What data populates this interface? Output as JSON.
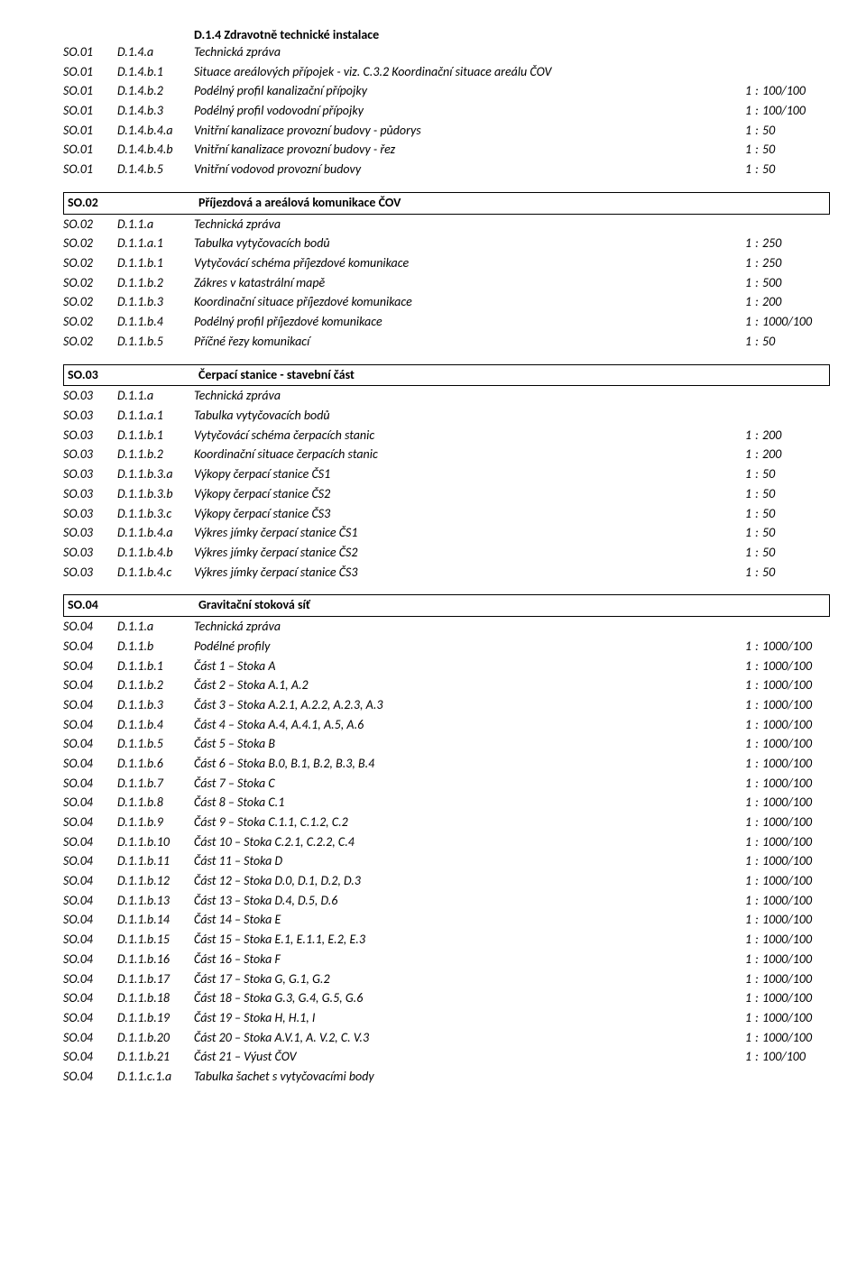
{
  "colors": {
    "text": "#000000",
    "border": "#000000",
    "background": "#ffffff"
  },
  "typography": {
    "family": "Calibri",
    "size_pt": 11,
    "line_height": 1.55
  },
  "topTitle": "D.1.4 Zdravotně technické instalace",
  "group1": [
    {
      "a": "SO.01",
      "b": "D.1.4.a",
      "c": "Technická zpráva"
    },
    {
      "a": "SO.01",
      "b": "D.1.4.b.1",
      "c": "Situace areálových přípojek - viz. C.3.2 Koordinační situace areálu ČOV"
    },
    {
      "a": "SO.01",
      "b": "D.1.4.b.2",
      "c": "Podélný profil kanalizační přípojky",
      "r1": "1",
      "r2": ":",
      "r3": "100/100"
    },
    {
      "a": "SO.01",
      "b": "D.1.4.b.3",
      "c": "Podélný profil vodovodní přípojky",
      "r1": "1",
      "r2": ":",
      "r3": "100/100"
    },
    {
      "a": "SO.01",
      "b": "D.1.4.b.4.a",
      "c": "Vnitřní kanalizace provozní budovy - půdorys",
      "r1": "1",
      "r2": ":",
      "r3": "50"
    },
    {
      "a": "SO.01",
      "b": "D.1.4.b.4.b",
      "c": "Vnitřní kanalizace provozní budovy - řez",
      "r1": "1",
      "r2": ":",
      "r3": "50"
    },
    {
      "a": "SO.01",
      "b": "D.1.4.b.5",
      "c": "Vnitřní vodovod provozní budovy",
      "r1": "1",
      "r2": ":",
      "r3": "50"
    }
  ],
  "sec02": {
    "a": "SO.02",
    "c": "Příjezdová a areálová komunikace ČOV"
  },
  "group2": [
    {
      "a": "SO.02",
      "b": "D.1.1.a",
      "c": "Technická zpráva"
    },
    {
      "a": "SO.02",
      "b": "D.1.1.a.1",
      "c": "Tabulka vytyčovacích bodů",
      "r1": "1",
      "r2": ":",
      "r3": "250"
    },
    {
      "a": "SO.02",
      "b": "D.1.1.b.1",
      "c": "Vytyčovácí schéma příjezdové komunikace",
      "r1": "1",
      "r2": ":",
      "r3": "250"
    },
    {
      "a": "SO.02",
      "b": "D.1.1.b.2",
      "c": "Zákres v katastrální mapě",
      "r1": "1",
      "r2": ":",
      "r3": "500"
    },
    {
      "a": "SO.02",
      "b": "D.1.1.b.3",
      "c": "Koordinační situace příjezdové komunikace",
      "r1": "1",
      "r2": ":",
      "r3": "200"
    },
    {
      "a": "SO.02",
      "b": "D.1.1.b.4",
      "c": "Podélný profil příjezdové komunikace",
      "r1": "1",
      "r2": ":",
      "r3": "1000/100"
    },
    {
      "a": "SO.02",
      "b": "D.1.1.b.5",
      "c": "Příčné řezy komunikací",
      "r1": "1",
      "r2": ":",
      "r3": "50"
    }
  ],
  "sec03": {
    "a": "SO.03",
    "c": "Čerpací stanice - stavební část"
  },
  "group3": [
    {
      "a": "SO.03",
      "b": "D.1.1.a",
      "c": "Technická zpráva"
    },
    {
      "a": "SO.03",
      "b": "D.1.1.a.1",
      "c": "Tabulka vytyčovacích bodů"
    },
    {
      "a": "SO.03",
      "b": "D.1.1.b.1",
      "c": "Vytyčovácí schéma čerpacích stanic",
      "r1": "1",
      "r2": ":",
      "r3": "200"
    },
    {
      "a": "SO.03",
      "b": "D.1.1.b.2",
      "c": "Koordinační situace čerpacích stanic",
      "r1": "1",
      "r2": ":",
      "r3": "200"
    },
    {
      "a": "SO.03",
      "b": "D.1.1.b.3.a",
      "c": "Výkopy čerpací stanice ČS1",
      "r1": "1",
      "r2": ":",
      "r3": "50"
    },
    {
      "a": "SO.03",
      "b": "D.1.1.b.3.b",
      "c": "Výkopy čerpací stanice ČS2",
      "r1": "1",
      "r2": ":",
      "r3": "50"
    },
    {
      "a": "SO.03",
      "b": "D.1.1.b.3.c",
      "c": "Výkopy čerpací stanice ČS3",
      "r1": "1",
      "r2": ":",
      "r3": "50"
    },
    {
      "a": "SO.03",
      "b": "D.1.1.b.4.a",
      "c": "Výkres jímky čerpací stanice ČS1",
      "r1": "1",
      "r2": ":",
      "r3": "50"
    },
    {
      "a": "SO.03",
      "b": "D.1.1.b.4.b",
      "c": "Výkres jímky čerpací stanice ČS2",
      "r1": "1",
      "r2": ":",
      "r3": "50"
    },
    {
      "a": "SO.03",
      "b": "D.1.1.b.4.c",
      "c": "Výkres jímky čerpací stanice ČS3",
      "r1": "1",
      "r2": ":",
      "r3": "50"
    }
  ],
  "sec04": {
    "a": "SO.04",
    "c": "Gravitační stoková síť"
  },
  "group4": [
    {
      "a": "SO.04",
      "b": "D.1.1.a",
      "c": "Technická zpráva"
    },
    {
      "a": "SO.04",
      "b": "D.1.1.b",
      "c": "Podélné profily",
      "r1": "1",
      "r2": ":",
      "r3": "1000/100"
    },
    {
      "a": "SO.04",
      "b": "D.1.1.b.1",
      "c": "Část 1 – Stoka A",
      "r1": "1",
      "r2": ":",
      "r3": "1000/100"
    },
    {
      "a": "SO.04",
      "b": "D.1.1.b.2",
      "c": "Část 2 – Stoka A.1, A.2",
      "r1": "1",
      "r2": ":",
      "r3": "1000/100"
    },
    {
      "a": "SO.04",
      "b": "D.1.1.b.3",
      "c": "Část 3 – Stoka A.2.1, A.2.2, A.2.3, A.3",
      "r1": "1",
      "r2": ":",
      "r3": "1000/100"
    },
    {
      "a": "SO.04",
      "b": "D.1.1.b.4",
      "c": "Část 4 – Stoka A.4, A.4.1, A.5, A.6",
      "r1": "1",
      "r2": ":",
      "r3": "1000/100"
    },
    {
      "a": "SO.04",
      "b": "D.1.1.b.5",
      "c": "Část 5 – Stoka B",
      "r1": "1",
      "r2": ":",
      "r3": "1000/100"
    },
    {
      "a": "SO.04",
      "b": "D.1.1.b.6",
      "c": "Část 6 – Stoka B.0, B.1, B.2, B.3, B.4",
      "r1": "1",
      "r2": ":",
      "r3": "1000/100"
    },
    {
      "a": "SO.04",
      "b": "D.1.1.b.7",
      "c": "Část 7 – Stoka C",
      "r1": "1",
      "r2": ":",
      "r3": "1000/100"
    },
    {
      "a": "SO.04",
      "b": "D.1.1.b.8",
      "c": "Část 8 – Stoka C.1",
      "r1": "1",
      "r2": ":",
      "r3": "1000/100"
    },
    {
      "a": "SO.04",
      "b": "D.1.1.b.9",
      "c": "Část 9 – Stoka C.1.1, C.1.2, C.2",
      "r1": "1",
      "r2": ":",
      "r3": "1000/100"
    },
    {
      "a": "SO.04",
      "b": "D.1.1.b.10",
      "c": "Část 10 – Stoka C.2.1, C.2.2, C.4",
      "r1": "1",
      "r2": ":",
      "r3": "1000/100"
    },
    {
      "a": "SO.04",
      "b": "D.1.1.b.11",
      "c": "Část 11 – Stoka D",
      "r1": "1",
      "r2": ":",
      "r3": "1000/100"
    },
    {
      "a": "SO.04",
      "b": "D.1.1.b.12",
      "c": "Část 12 – Stoka D.0, D.1, D.2, D.3",
      "r1": "1",
      "r2": ":",
      "r3": "1000/100"
    },
    {
      "a": "SO.04",
      "b": "D.1.1.b.13",
      "c": "Část 13 – Stoka D.4, D.5, D.6",
      "r1": "1",
      "r2": ":",
      "r3": "1000/100"
    },
    {
      "a": "SO.04",
      "b": "D.1.1.b.14",
      "c": "Část 14 – Stoka E",
      "r1": "1",
      "r2": ":",
      "r3": "1000/100"
    },
    {
      "a": "SO.04",
      "b": "D.1.1.b.15",
      "c": "Část 15 – Stoka E.1, E.1.1, E.2, E.3",
      "r1": "1",
      "r2": ":",
      "r3": "1000/100"
    },
    {
      "a": "SO.04",
      "b": "D.1.1.b.16",
      "c": "Část 16 – Stoka F",
      "r1": "1",
      "r2": ":",
      "r3": "1000/100"
    },
    {
      "a": "SO.04",
      "b": "D.1.1.b.17",
      "c": "Část 17 – Stoka G, G.1, G.2",
      "r1": "1",
      "r2": ":",
      "r3": "1000/100"
    },
    {
      "a": "SO.04",
      "b": "D.1.1.b.18",
      "c": "Část 18 – Stoka G.3, G.4, G.5, G.6",
      "r1": "1",
      "r2": ":",
      "r3": "1000/100"
    },
    {
      "a": "SO.04",
      "b": "D.1.1.b.19",
      "c": "Část 19 – Stoka H, H.1, I",
      "r1": "1",
      "r2": ":",
      "r3": "1000/100"
    },
    {
      "a": "SO.04",
      "b": "D.1.1.b.20",
      "c": "Část 20 – Stoka A.V.1,  A. V.2, C. V.3",
      "r1": "1",
      "r2": ":",
      "r3": "1000/100"
    },
    {
      "a": "SO.04",
      "b": "D.1.1.b.21",
      "c": "Část 21 – Výust ČOV",
      "r1": "1",
      "r2": ":",
      "r3": "100/100"
    },
    {
      "a": "SO.04",
      "b": "D.1.1.c.1.a",
      "c": "Tabulka šachet s vytyčovacími body"
    }
  ]
}
